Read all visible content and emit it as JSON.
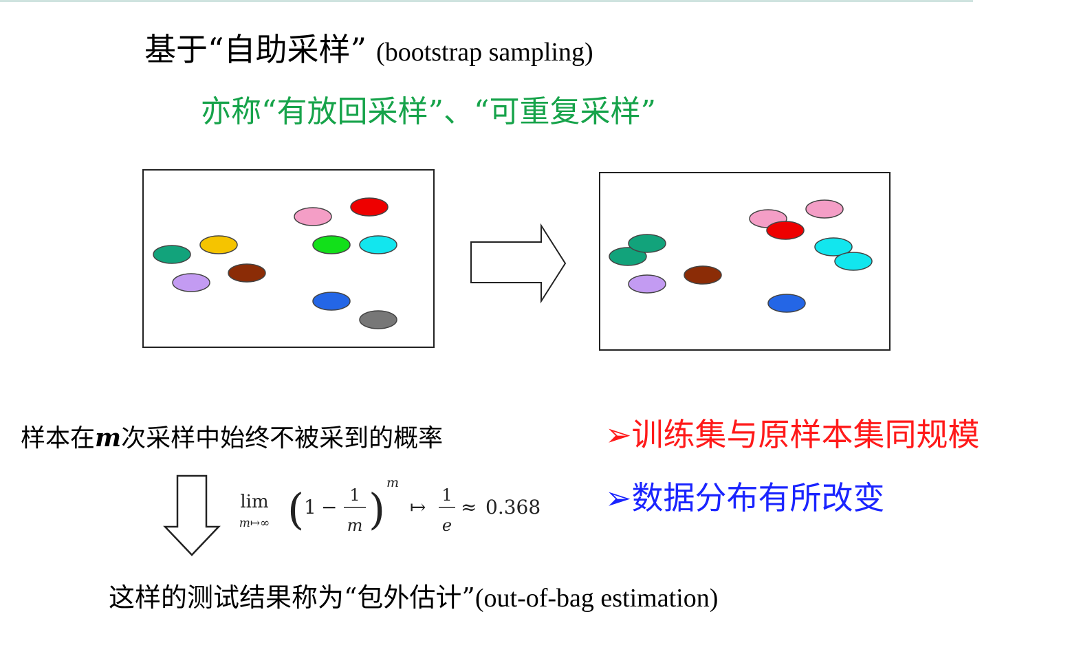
{
  "header": {
    "title_cn": "基于“自助采样”",
    "title_en": "(bootstrap sampling)",
    "subtitle": "亦称“有放回采样”、“可重复采样”"
  },
  "diagram": {
    "left_box": {
      "dots": [
        {
          "name": "teal",
          "color": "#12a37b"
        },
        {
          "name": "yellow",
          "color": "#f5c400"
        },
        {
          "name": "lavender",
          "color": "#c39bf2"
        },
        {
          "name": "brown",
          "color": "#8b2c06"
        },
        {
          "name": "pink",
          "color": "#f49ec6"
        },
        {
          "name": "red",
          "color": "#ee0000"
        },
        {
          "name": "green",
          "color": "#12e01a"
        },
        {
          "name": "cyan",
          "color": "#12e6ee"
        },
        {
          "name": "blue",
          "color": "#2466e6"
        },
        {
          "name": "gray",
          "color": "#777777"
        }
      ]
    },
    "right_box": {
      "dots": [
        {
          "name": "teal",
          "color": "#12a37b"
        },
        {
          "name": "teal",
          "color": "#12a37b"
        },
        {
          "name": "lavender",
          "color": "#c39bf2"
        },
        {
          "name": "brown",
          "color": "#8b2c06"
        },
        {
          "name": "pink",
          "color": "#f49ec6"
        },
        {
          "name": "pink",
          "color": "#f49ec6"
        },
        {
          "name": "red",
          "color": "#ee0000"
        },
        {
          "name": "cyan",
          "color": "#12e6ee"
        },
        {
          "name": "cyan",
          "color": "#12e6ee"
        },
        {
          "name": "blue",
          "color": "#2466e6"
        }
      ]
    }
  },
  "probability": {
    "text_before": "样本在",
    "variable": "m",
    "text_after": "次采样中始终不被采到的概率"
  },
  "formula": {
    "lim": "lim",
    "lim_sub": "m↦∞",
    "one": "1",
    "minus": "−",
    "frac_num": "1",
    "frac_den": "m",
    "exponent": "m",
    "mapsto": "↦",
    "e_num": "1",
    "e_den": "e",
    "approx": "≈",
    "value": "0.368"
  },
  "bullets": [
    {
      "marker": "➢",
      "text": "训练集与原样本集同规模",
      "color": "#ff1a1a"
    },
    {
      "marker": "➢",
      "text": "数据分布有所改变",
      "color": "#1a24ff"
    }
  ],
  "conclusion": {
    "text_cn": "这样的测试结果称为“包外估计”",
    "text_en": "(out-of-bag estimation)"
  }
}
